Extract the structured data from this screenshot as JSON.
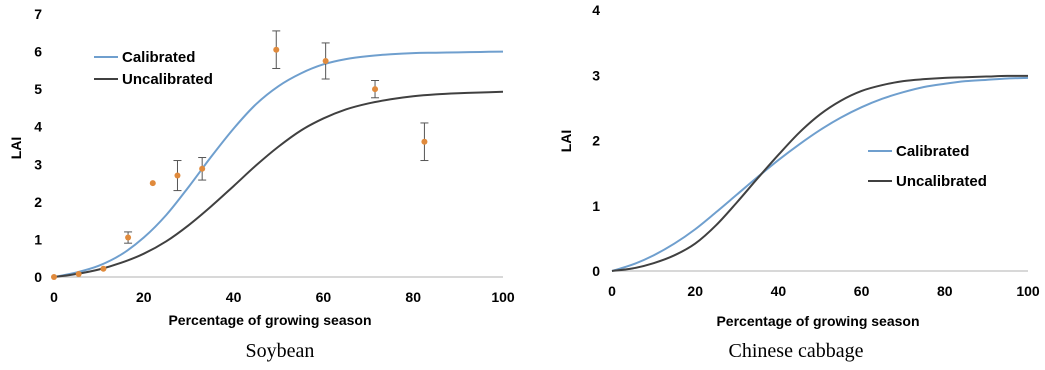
{
  "chart_data": [
    {
      "type": "line",
      "caption": "Soybean",
      "xlabel": "Percentage of growing season",
      "ylabel": "LAI",
      "xlim": [
        0,
        100
      ],
      "ylim": [
        0,
        7
      ],
      "x_ticks": [
        0,
        20,
        40,
        60,
        80,
        100
      ],
      "y_ticks": [
        0,
        1,
        2,
        3,
        4,
        5,
        6,
        7
      ],
      "grid": false,
      "legend_position": "top-left",
      "series": [
        {
          "name": "Calibrated",
          "color": "#6f9fce",
          "x": [
            0,
            5,
            10,
            15,
            20,
            25,
            30,
            35,
            40,
            45,
            50,
            55,
            60,
            65,
            70,
            75,
            80,
            85,
            90,
            95,
            100
          ],
          "y": [
            0.0,
            0.12,
            0.3,
            0.6,
            1.05,
            1.65,
            2.4,
            3.2,
            3.95,
            4.6,
            5.08,
            5.42,
            5.66,
            5.8,
            5.88,
            5.93,
            5.96,
            5.97,
            5.98,
            5.99,
            6.0
          ]
        },
        {
          "name": "Uncalibrated",
          "color": "#404040",
          "x": [
            0,
            5,
            10,
            15,
            20,
            25,
            30,
            35,
            40,
            45,
            50,
            55,
            60,
            65,
            70,
            75,
            80,
            85,
            90,
            95,
            100
          ],
          "y": [
            0.0,
            0.08,
            0.2,
            0.38,
            0.62,
            0.95,
            1.38,
            1.88,
            2.42,
            2.97,
            3.47,
            3.9,
            4.22,
            4.46,
            4.62,
            4.73,
            4.81,
            4.86,
            4.89,
            4.91,
            4.93
          ]
        }
      ],
      "observed": {
        "color": "#e08a3c",
        "points": [
          {
            "x": 0,
            "y": 0.0,
            "err": 0.0
          },
          {
            "x": 5.5,
            "y": 0.08,
            "err": 0.0
          },
          {
            "x": 11,
            "y": 0.22,
            "err": 0.0
          },
          {
            "x": 16.5,
            "y": 1.05,
            "err": 0.15
          },
          {
            "x": 22,
            "y": 2.5,
            "err": 0.0
          },
          {
            "x": 27.5,
            "y": 2.7,
            "err": 0.4
          },
          {
            "x": 33,
            "y": 2.88,
            "err": 0.3
          },
          {
            "x": 49.5,
            "y": 6.05,
            "err": 0.5
          },
          {
            "x": 60.5,
            "y": 5.75,
            "err": 0.48
          },
          {
            "x": 71.5,
            "y": 5.0,
            "err": 0.23
          },
          {
            "x": 82.5,
            "y": 3.6,
            "err": 0.5
          }
        ]
      }
    },
    {
      "type": "line",
      "caption": "Chinese  cabbage",
      "xlabel": "Percentage of growing season",
      "ylabel": "LAI",
      "xlim": [
        0,
        100
      ],
      "ylim": [
        0,
        4
      ],
      "x_ticks": [
        0,
        20,
        40,
        60,
        80,
        100
      ],
      "y_ticks": [
        0,
        1,
        2,
        3,
        4
      ],
      "grid": false,
      "legend_position": "right",
      "series": [
        {
          "name": "Calibrated",
          "color": "#6f9fce",
          "x": [
            0,
            5,
            10,
            15,
            20,
            25,
            30,
            35,
            40,
            45,
            50,
            55,
            60,
            65,
            70,
            75,
            80,
            85,
            90,
            95,
            100
          ],
          "y": [
            0.0,
            0.1,
            0.24,
            0.42,
            0.64,
            0.9,
            1.17,
            1.44,
            1.7,
            1.94,
            2.16,
            2.35,
            2.51,
            2.64,
            2.74,
            2.82,
            2.87,
            2.91,
            2.93,
            2.95,
            2.96
          ]
        },
        {
          "name": "Uncalibrated",
          "color": "#404040",
          "x": [
            0,
            5,
            10,
            15,
            20,
            25,
            30,
            35,
            40,
            45,
            50,
            55,
            60,
            65,
            70,
            75,
            80,
            85,
            90,
            95,
            100
          ],
          "y": [
            0.0,
            0.04,
            0.12,
            0.24,
            0.42,
            0.7,
            1.05,
            1.42,
            1.78,
            2.12,
            2.4,
            2.61,
            2.76,
            2.85,
            2.91,
            2.94,
            2.96,
            2.97,
            2.98,
            2.99,
            2.99
          ]
        }
      ]
    }
  ]
}
